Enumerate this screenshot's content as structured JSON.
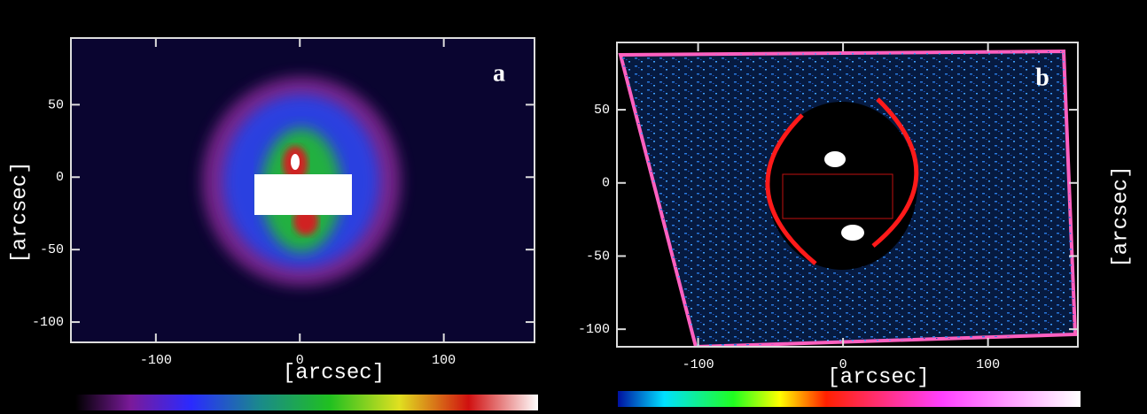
{
  "chart_data": [
    {
      "type": "image",
      "title": "a",
      "xlabel": "[arcsec]",
      "ylabel": "[arcsec]",
      "xlim": [
        -159,
        163
      ],
      "ylim": [
        -114,
        96
      ],
      "xticks": [
        -100,
        0,
        100
      ],
      "yticks": [
        -100,
        -50,
        0,
        50
      ]
    },
    {
      "type": "image",
      "title": "b",
      "xlabel": "[arcsec]",
      "ylabel": "[arcsec]",
      "xlim": [
        -156,
        162
      ],
      "ylim": [
        -112,
        96
      ],
      "xticks": [
        -100,
        0,
        100
      ],
      "yticks": [
        -100,
        -50,
        0,
        50
      ]
    }
  ]
}
